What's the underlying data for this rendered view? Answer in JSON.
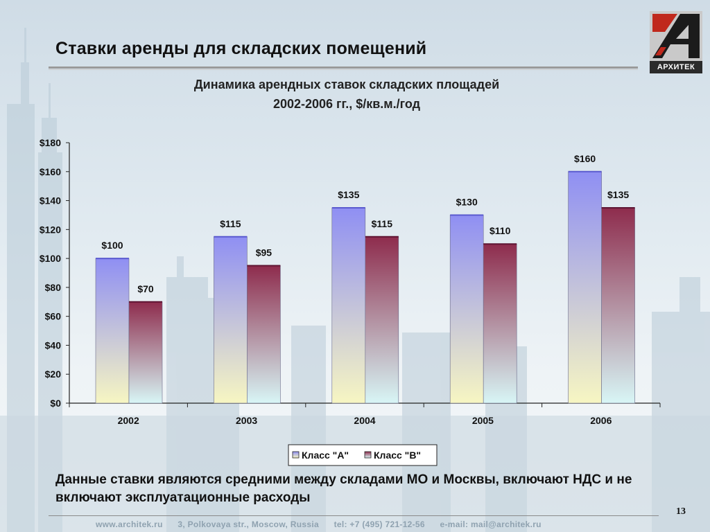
{
  "slide": {
    "title": "Ставки аренды для складских помещений",
    "chart_title_line1": "Динамика арендных ставок складских площадей",
    "chart_title_line2": "2002-2006 гг., $/кв.м./год",
    "note": "Данные ставки являются средними между складами МО и Москвы, включают НДС и не включают эксплуатационные расходы",
    "page_number": "13"
  },
  "logo": {
    "text": "АРХИТЕК",
    "colors": {
      "accent": "#c0281c",
      "dark": "#1a1a1a",
      "box": "#c8c8c8"
    }
  },
  "footer": {
    "site": "www.architek.ru",
    "address": "3, Polkovaya str., Moscow, Russia",
    "tel": "tel: +7 (495) 721-12-56",
    "email": "e-mail: mail@architek.ru"
  },
  "chart_data": {
    "type": "bar",
    "categories": [
      "2002",
      "2003",
      "2004",
      "2005",
      "2006"
    ],
    "series": [
      {
        "name": "Класс \"A\"",
        "values": [
          100,
          115,
          135,
          130,
          160
        ],
        "labels": [
          "$100",
          "$115",
          "$135",
          "$130",
          "$160"
        ],
        "color_top": "#8f8ff3",
        "color_bottom": "#f7f6c2"
      },
      {
        "name": "Класс \"B\"",
        "values": [
          70,
          95,
          115,
          110,
          135
        ],
        "labels": [
          "$70",
          "$95",
          "$115",
          "$110",
          "$135"
        ],
        "color_top": "#8e2c4d",
        "color_bottom": "#d8f6f6"
      }
    ],
    "y_ticks": [
      "$0",
      "$20",
      "$40",
      "$60",
      "$80",
      "$100",
      "$120",
      "$140",
      "$160",
      "$180"
    ],
    "ylim": [
      0,
      180
    ],
    "legend_position": "bottom",
    "grid": false
  }
}
